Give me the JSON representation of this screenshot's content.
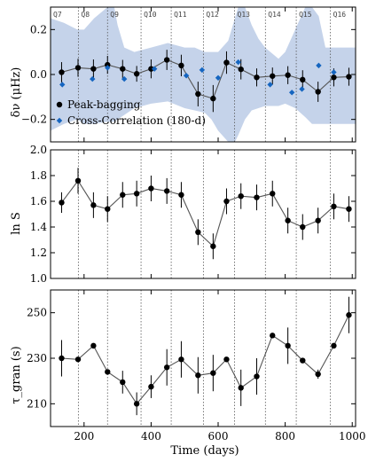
{
  "chart_data": [
    {
      "type": "line",
      "panel": "top",
      "ylabel": "δν (μHz)",
      "ylim": [
        -0.3,
        0.3
      ],
      "yticks": [
        -0.2,
        0.0,
        0.2
      ],
      "ytick_labels": [
        "−0.2",
        "0.0",
        "0.2"
      ],
      "xlim": [
        100,
        1010
      ],
      "quarters": [
        {
          "label": "Q7",
          "start": 95
        },
        {
          "label": "Q8",
          "start": 183
        },
        {
          "label": "Q9",
          "start": 270
        },
        {
          "label": "Q10",
          "start": 370
        },
        {
          "label": "Q11",
          "start": 460
        },
        {
          "label": "Q12",
          "start": 556
        },
        {
          "label": "Q13",
          "start": 649
        },
        {
          "label": "Q14",
          "start": 741
        },
        {
          "label": "Q15",
          "start": 833
        },
        {
          "label": "Q16",
          "start": 935
        }
      ],
      "band": {
        "x": [
          100,
          140,
          180,
          200,
          230,
          270,
          290,
          300,
          320,
          350,
          400,
          450,
          500,
          530,
          560,
          580,
          600,
          630,
          650,
          660,
          680,
          700,
          720,
          740,
          780,
          800,
          830,
          860,
          880,
          900,
          920,
          940,
          960,
          1010
        ],
        "upper": [
          0.25,
          0.23,
          0.2,
          0.2,
          0.25,
          0.3,
          0.3,
          0.22,
          0.12,
          0.1,
          0.12,
          0.14,
          0.12,
          0.12,
          0.1,
          0.1,
          0.1,
          0.15,
          0.25,
          0.3,
          0.3,
          0.22,
          0.16,
          0.12,
          0.07,
          0.1,
          0.2,
          0.3,
          0.3,
          0.26,
          0.12,
          0.12,
          0.12,
          0.12
        ],
        "lower": [
          -0.25,
          -0.22,
          -0.2,
          -0.22,
          -0.22,
          -0.21,
          -0.21,
          -0.2,
          -0.18,
          -0.15,
          -0.13,
          -0.12,
          -0.15,
          -0.16,
          -0.17,
          -0.2,
          -0.25,
          -0.3,
          -0.3,
          -0.27,
          -0.2,
          -0.16,
          -0.15,
          -0.14,
          -0.14,
          -0.13,
          -0.15,
          -0.19,
          -0.22,
          -0.22,
          -0.22,
          -0.22,
          -0.22,
          -0.22
        ]
      },
      "series": [
        {
          "name": "Peak-bagging",
          "x": [
            133,
            182,
            228,
            270,
            315,
            357,
            400,
            447,
            490,
            540,
            585,
            625,
            668,
            715,
            762,
            808,
            852,
            898,
            945,
            990
          ],
          "y": [
            0.01,
            0.03,
            0.025,
            0.043,
            0.025,
            0.003,
            0.025,
            0.065,
            0.04,
            -0.087,
            -0.107,
            0.053,
            0.023,
            -0.013,
            -0.007,
            -0.003,
            -0.023,
            -0.077,
            -0.013,
            -0.01
          ],
          "yerr": [
            0.045,
            0.04,
            0.042,
            0.04,
            0.04,
            0.035,
            0.042,
            0.045,
            0.048,
            0.055,
            0.06,
            0.05,
            0.045,
            0.04,
            0.038,
            0.04,
            0.042,
            0.045,
            0.04,
            0.04
          ]
        },
        {
          "name": "Cross-Correlation (180-d)",
          "x": [
            135,
            225,
            270,
            320,
            410,
            505,
            552,
            600,
            660,
            755,
            820,
            850,
            900,
            945
          ],
          "y": [
            -0.045,
            -0.02,
            0.03,
            -0.02,
            0.025,
            -0.005,
            0.02,
            -0.015,
            0.055,
            -0.045,
            -0.08,
            -0.065,
            0.04,
            0.01
          ]
        }
      ],
      "legend_position": "lower-left"
    },
    {
      "type": "line",
      "panel": "middle",
      "ylabel": "ln S",
      "ylim": [
        1.0,
        2.0
      ],
      "yticks": [
        1.0,
        1.2,
        1.4,
        1.6,
        1.8,
        2.0
      ],
      "ytick_labels": [
        "1.0",
        "1.2",
        "1.4",
        "1.6",
        "1.8",
        "2.0"
      ],
      "xlim": [
        100,
        1010
      ],
      "series": [
        {
          "name": "",
          "x": [
            133,
            182,
            228,
            270,
            315,
            357,
            400,
            447,
            490,
            540,
            585,
            625,
            668,
            715,
            762,
            808,
            852,
            898,
            945,
            990
          ],
          "y": [
            1.59,
            1.76,
            1.57,
            1.54,
            1.65,
            1.66,
            1.7,
            1.68,
            1.65,
            1.36,
            1.25,
            1.6,
            1.64,
            1.63,
            1.66,
            1.45,
            1.4,
            1.45,
            1.56,
            1.54
          ],
          "yerr": [
            0.08,
            0.1,
            0.1,
            0.1,
            0.1,
            0.1,
            0.1,
            0.1,
            0.1,
            0.1,
            0.1,
            0.1,
            0.1,
            0.1,
            0.1,
            0.1,
            0.1,
            0.1,
            0.1,
            0.1
          ]
        }
      ]
    },
    {
      "type": "line",
      "panel": "bottom",
      "ylabel": "τ_gran (s)",
      "ylim": [
        200,
        260
      ],
      "yticks": [
        210,
        230,
        250
      ],
      "ytick_labels": [
        "210",
        "230",
        "250"
      ],
      "xlim": [
        100,
        1010
      ],
      "xticks": [
        200,
        400,
        600,
        800,
        1000
      ],
      "xtick_labels": [
        "200",
        "400",
        "600",
        "800",
        "1000"
      ],
      "xlabel": "Time (days)",
      "series": [
        {
          "name": "",
          "x": [
            133,
            182,
            228,
            270,
            315,
            357,
            400,
            447,
            490,
            540,
            585,
            625,
            668,
            715,
            762,
            808,
            852,
            898,
            945,
            990
          ],
          "y": [
            230.0,
            229.5,
            235.5,
            224.0,
            219.5,
            210.0,
            217.5,
            226.0,
            229.5,
            222.5,
            223.5,
            229.5,
            217.0,
            222.0,
            240.0,
            235.5,
            229.0,
            223.0,
            235.5,
            249.0
          ],
          "yerr": [
            8,
            0,
            0,
            0,
            5,
            5,
            5,
            8,
            8,
            8,
            8,
            0,
            8,
            8,
            0,
            8,
            0,
            2,
            0,
            8
          ]
        }
      ]
    }
  ],
  "colors": {
    "band": "#c5d3ea",
    "peak_bagging": "#000000",
    "cross_correlation": "#1565c0",
    "line": "#555555"
  }
}
